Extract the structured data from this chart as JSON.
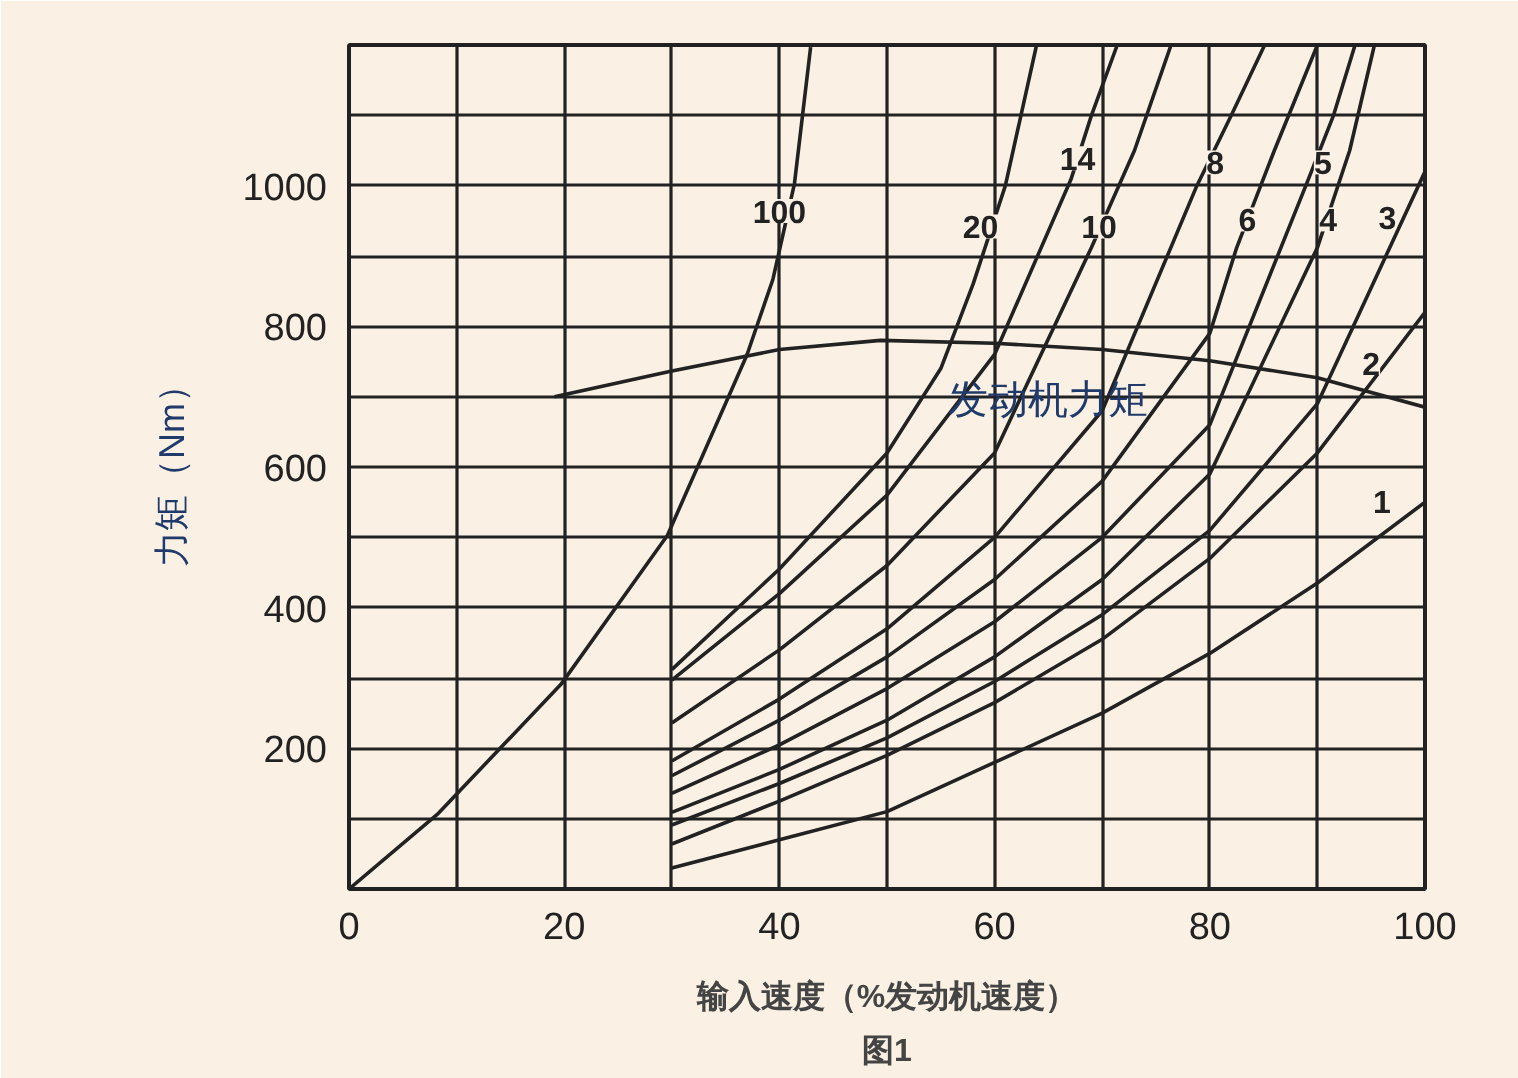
{
  "chart_data": {
    "type": "line",
    "xlabel": "输入速度（%发动机速度）",
    "ylabel": "力矩（Nm）",
    "xlim": [
      0,
      100
    ],
    "ylim": [
      0,
      1200
    ],
    "xticks": [
      0,
      {
        "value": 10,
        "label": null
      },
      20,
      {
        "value": 30,
        "label": null
      },
      40,
      {
        "value": 50,
        "label": null
      },
      60,
      {
        "value": 70,
        "label": null
      },
      80,
      {
        "value": 90,
        "label": null
      },
      100
    ],
    "yticks": [
      {
        "value": 100,
        "label": null
      },
      200,
      {
        "value": 300,
        "label": null
      },
      400,
      {
        "value": 500,
        "label": null
      },
      600,
      {
        "value": 700,
        "label": null
      },
      800,
      {
        "value": 900,
        "label": null
      },
      1000,
      {
        "value": 1100,
        "label": null
      }
    ],
    "grid": true,
    "line_style": "solid",
    "marker": "none",
    "series": [
      {
        "color": "#222222",
        "x": [
          0,
          8.2,
          19.7,
          29.6,
          37,
          39.4,
          41.4,
          42.9
        ],
        "values": [
          0,
          106,
          291,
          503,
          760,
          867,
          1003,
          1197
        ]
      },
      {
        "color": "#222222",
        "x": [
          30,
          40,
          50,
          55,
          58,
          61,
          63.9
        ],
        "values": [
          312,
          455,
          620,
          740,
          860,
          1000,
          1200
        ]
      },
      {
        "color": "#222222",
        "x": [
          30,
          40,
          50,
          60,
          67.1,
          69,
          71.4
        ],
        "values": [
          297,
          420,
          560,
          760,
          1009,
          1100,
          1200
        ]
      },
      {
        "color": "#222222",
        "x": [
          30,
          40,
          50,
          60,
          69,
          73,
          76.4
        ],
        "values": [
          236,
          340,
          460,
          620,
          912,
          1050,
          1200
        ]
      },
      {
        "color": "#222222",
        "x": [
          30,
          40,
          50,
          60,
          70,
          78.8,
          82,
          85.1
        ],
        "values": [
          182,
          270,
          370,
          500,
          680,
          1000,
          1100,
          1200
        ]
      },
      {
        "color": "#222222",
        "x": [
          30,
          40,
          50,
          60,
          70,
          80,
          82.5,
          86,
          90
        ],
        "values": [
          161,
          240,
          330,
          440,
          580,
          790,
          912,
          1050,
          1200
        ]
      },
      {
        "color": "#222222",
        "x": [
          30,
          40,
          50,
          60,
          70,
          80,
          89,
          91.5,
          93.5
        ],
        "values": [
          136,
          205,
          285,
          380,
          500,
          660,
          1003,
          1100,
          1200
        ]
      },
      {
        "color": "#222222",
        "x": [
          30,
          40,
          50,
          60,
          70,
          80,
          90,
          93,
          95.3
        ],
        "values": [
          109,
          170,
          240,
          330,
          440,
          590,
          912,
          1050,
          1200
        ]
      },
      {
        "color": "#222222",
        "x": [
          30,
          40,
          50,
          60,
          70,
          80,
          90,
          100
        ],
        "values": [
          91,
          150,
          215,
          295,
          390,
          510,
          690,
          1020
        ]
      },
      {
        "color": "#222222",
        "x": [
          30,
          40,
          50,
          60,
          70,
          80,
          90,
          100
        ],
        "values": [
          64,
          125,
          190,
          265,
          355,
          470,
          620,
          820
        ]
      },
      {
        "color": "#222222",
        "x": [
          30,
          40,
          50,
          60,
          70,
          80,
          90,
          100
        ],
        "values": [
          30,
          70,
          110,
          180,
          250,
          335,
          435,
          550
        ]
      },
      {
        "name": "发动机力矩",
        "color": "#222222",
        "x": [
          19.1,
          29.9,
          40,
          49.4,
          60,
          70,
          80,
          90,
          100
        ],
        "values": [
          700,
          736,
          767,
          780,
          776,
          767,
          751,
          727,
          685
        ]
      }
    ],
    "annotations": [
      {
        "text": "100",
        "x": 40,
        "y": 964
      },
      {
        "text": "20",
        "x": 58.7,
        "y": 942
      },
      {
        "text": "14",
        "x": 67.7,
        "y": 1039
      },
      {
        "text": "10",
        "x": 69.7,
        "y": 942
      },
      {
        "text": "8",
        "x": 80.5,
        "y": 1033
      },
      {
        "text": "6",
        "x": 83.5,
        "y": 952
      },
      {
        "text": "5",
        "x": 90.5,
        "y": 1033
      },
      {
        "text": "4",
        "x": 91,
        "y": 952
      },
      {
        "text": "3",
        "x": 96.5,
        "y": 955
      },
      {
        "text": "2",
        "x": 95,
        "y": 748
      },
      {
        "text": "1",
        "x": 96,
        "y": 552
      },
      "图1"
    ]
  }
}
